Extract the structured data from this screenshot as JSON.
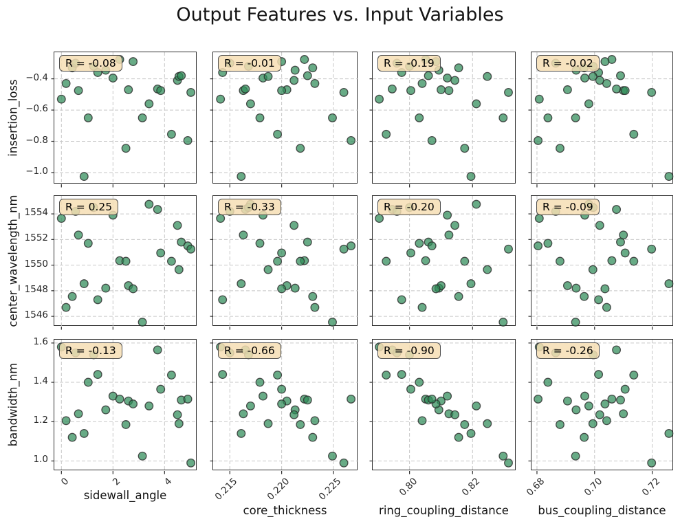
{
  "title": "Output Features vs. Input Variables",
  "style": {
    "point_fill": "#2e8b57",
    "point_fill_opacity": 0.72,
    "point_edge": "#2b2b2b",
    "point_edge_opacity": 0.8,
    "grid_color": "#c7c7c7",
    "spine_color": "#2d2d2d",
    "annotation_bg": "#f5deb3",
    "annotation_border": "#4d4d4d"
  },
  "chart_data": {
    "type": "scatter",
    "title": "Output Features vs. Input Variables",
    "layout": "3x4 grid; shared y per row (output feature), shared x per column (input variable); dashed grid on; R annotation top-left of each panel",
    "rows": [
      {
        "key": "insertion_loss",
        "label": "insertion_loss",
        "ticks": [
          -0.4,
          -0.6,
          -0.8,
          -1.0
        ],
        "tick_labels": [
          "−0.4",
          "−0.6",
          "−0.8",
          "−1.0"
        ],
        "range": [
          -1.075,
          -0.23
        ]
      },
      {
        "key": "center_wavelength_nm",
        "label": "center_wavelength_nm",
        "ticks": [
          1554,
          1552,
          1550,
          1548,
          1546
        ],
        "tick_labels": [
          "1554",
          "1552",
          "1550",
          "1548",
          "1546"
        ],
        "range": [
          1545.2,
          1555.4
        ]
      },
      {
        "key": "bandwidth_nm",
        "label": "bandwidth_nm",
        "ticks": [
          1.6,
          1.4,
          1.2,
          1.0
        ],
        "tick_labels": [
          "1.6",
          "1.4",
          "1.2",
          "1.0"
        ],
        "range": [
          0.949,
          1.617
        ]
      }
    ],
    "cols": [
      {
        "key": "sidewall_angle",
        "label": "sidewall_angle",
        "ticks": [
          0,
          2,
          4
        ],
        "tick_labels": [
          "0",
          "2",
          "4"
        ],
        "range": [
          -0.275,
          5.272
        ]
      },
      {
        "key": "core_thickness",
        "label": "core_thickness",
        "ticks": [
          0.215,
          0.22,
          0.225
        ],
        "tick_labels": [
          "0.215",
          "0.220",
          "0.225"
        ],
        "range": [
          0.21339,
          0.22739
        ]
      },
      {
        "key": "ring_coupling_distance",
        "label": "ring_coupling_distance",
        "ticks": [
          0.8,
          0.82
        ],
        "tick_labels": [
          "0.80",
          "0.82"
        ],
        "range": [
          0.7883,
          0.8339
        ]
      },
      {
        "key": "bus_coupling_distance",
        "label": "bus_coupling_distance",
        "ticks": [
          0.68,
          0.7,
          0.72
        ],
        "tick_labels": [
          "0.68",
          "0.70",
          "0.72"
        ],
        "range": [
          0.6781,
          0.7275
        ]
      }
    ],
    "r_labels": [
      [
        "R = -0.08",
        "R = -0.01",
        "R = -0.19",
        "R = -0.02"
      ],
      [
        "R = 0.25",
        "R = -0.33",
        "R = -0.20",
        "R = -0.09"
      ],
      [
        "R = -0.13",
        "R = -0.66",
        "R = -0.90",
        "R = -0.26"
      ]
    ],
    "samples": {
      "sidewall_angle": [
        0.0,
        0.18,
        0.42,
        0.66,
        0.88,
        1.04,
        1.41,
        1.72,
        2.0,
        2.26,
        2.5,
        2.6,
        2.78,
        3.14,
        3.4,
        3.73,
        3.85,
        4.27,
        4.5,
        4.56,
        4.65,
        4.9,
        5.02,
        0.55,
        1.25
      ],
      "core_thickness": [
        0.2141,
        0.2232,
        0.223,
        0.2163,
        0.2161,
        0.2179,
        0.2143,
        0.2213,
        0.2182,
        0.2222,
        0.2218,
        0.2205,
        0.22,
        0.2249,
        0.217,
        0.2165,
        0.22,
        0.2196,
        0.2212,
        0.2187,
        0.2225,
        0.2267,
        0.226,
        0.215,
        0.2168
      ],
      "ring_coupling_distance": [
        0.7904,
        0.804,
        0.8156,
        0.8125,
        0.8195,
        0.8031,
        0.7975,
        0.8093,
        0.812,
        0.8051,
        0.8175,
        0.81,
        0.8084,
        0.8297,
        0.8212,
        0.7945,
        0.8004,
        0.7926,
        0.8144,
        0.8247,
        0.806,
        0.8071,
        0.8314,
        0.796,
        0.8
      ],
      "bus_coupling_distance": [
        0.6808,
        0.7042,
        0.6964,
        0.71,
        0.7258,
        0.6838,
        0.7014,
        0.6936,
        0.6966,
        0.706,
        0.688,
        0.6906,
        0.7036,
        0.6934,
        0.698,
        0.7076,
        0.7106,
        0.7136,
        0.7018,
        0.6994,
        0.709,
        0.6804,
        0.7198,
        0.6865,
        0.6995
      ],
      "insertion_loss": [
        -0.53,
        -0.43,
        -0.33,
        -0.475,
        -1.025,
        -0.65,
        -0.36,
        -0.345,
        -0.395,
        -0.276,
        -0.845,
        -0.47,
        -0.29,
        -0.65,
        -0.56,
        -0.465,
        -0.475,
        -0.755,
        -0.41,
        -0.385,
        -0.38,
        -0.795,
        -0.487,
        -0.3,
        -0.32
      ],
      "center_wavelength_nm": [
        1553.65,
        1546.7,
        1547.55,
        1552.35,
        1548.55,
        1551.7,
        1547.3,
        1548.2,
        1553.9,
        1550.35,
        1550.3,
        1548.4,
        1548.15,
        1545.55,
        1554.75,
        1554.35,
        1550.95,
        1550.3,
        1553.1,
        1549.65,
        1551.8,
        1551.5,
        1551.25,
        1554.2,
        1554.5
      ],
      "bandwidth_nm": [
        1.58,
        1.205,
        1.12,
        1.24,
        1.14,
        1.4,
        1.44,
        1.26,
        1.33,
        1.315,
        1.185,
        1.305,
        1.29,
        1.025,
        1.28,
        1.565,
        1.365,
        1.437,
        1.235,
        1.19,
        1.31,
        1.315,
        0.99,
        1.55,
        1.54
      ]
    }
  }
}
